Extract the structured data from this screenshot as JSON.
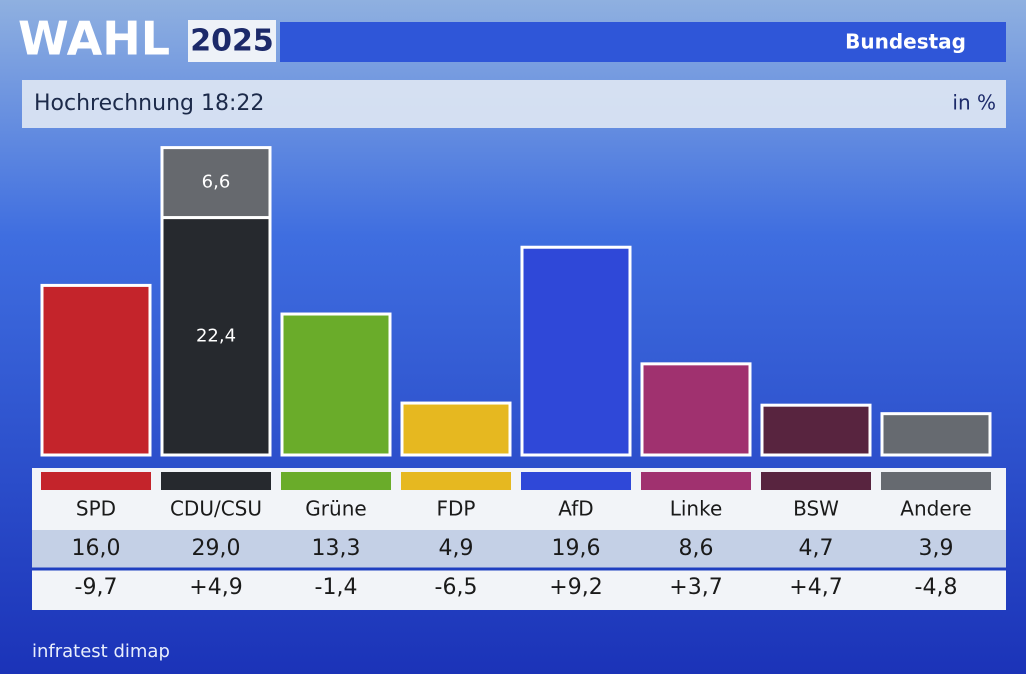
{
  "header": {
    "brand": "WAHL",
    "year": "2025",
    "chamber": "Bundestag"
  },
  "chart_data": {
    "type": "bar",
    "title": "Hochrechnung 18:22",
    "unit": "in %",
    "categories": [
      "SPD",
      "CDU/CSU",
      "Grüne",
      "FDP",
      "AfD",
      "Linke",
      "BSW",
      "Andere"
    ],
    "colors": [
      "#c4242b",
      "#26292e",
      "#6aac2a",
      "#e6b820",
      "#2f48d8",
      "#a0316f",
      "#58243f",
      "#666a70"
    ],
    "values": [
      16.0,
      29.0,
      13.3,
      4.9,
      19.6,
      8.6,
      4.7,
      3.9
    ],
    "value_labels": [
      "16,0",
      "29,0",
      "13,3",
      "4,9",
      "19,6",
      "8,6",
      "4,7",
      "3,9"
    ],
    "changes": [
      -9.7,
      4.9,
      -1.4,
      -6.5,
      9.2,
      3.7,
      4.7,
      -4.8
    ],
    "change_labels": [
      "-9,7",
      "+4,9",
      "-1,4",
      "-6,5",
      "+9,2",
      "+3,7",
      "+4,7",
      "-4,8"
    ],
    "stacked": {
      "category": 1,
      "segments": [
        {
          "value": 22.4,
          "label": "22,4",
          "color": "#26292e"
        },
        {
          "value": 6.6,
          "label": "6,6",
          "color": "#66696e"
        }
      ]
    }
  },
  "source": "infratest dimap"
}
